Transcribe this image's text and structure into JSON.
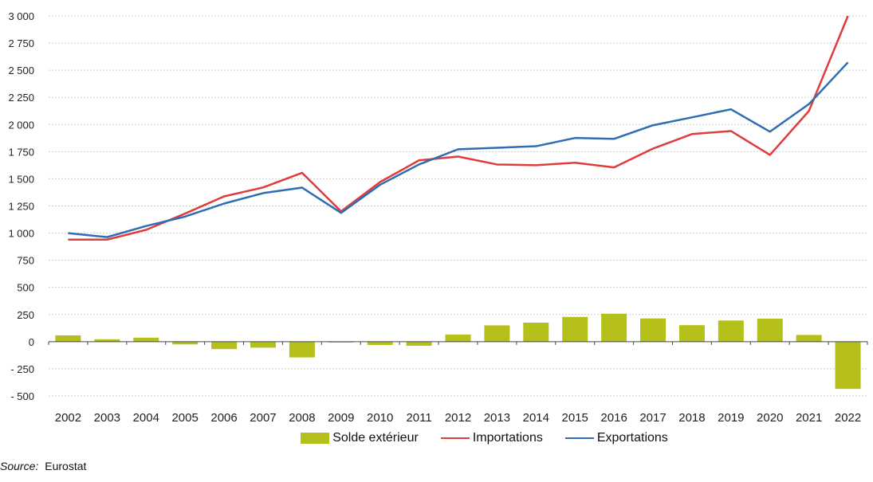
{
  "chart_data": {
    "type": "bar+line",
    "categories": [
      "2002",
      "2003",
      "2004",
      "2005",
      "2006",
      "2007",
      "2008",
      "2009",
      "2010",
      "2011",
      "2012",
      "2013",
      "2014",
      "2015",
      "2016",
      "2017",
      "2018",
      "2019",
      "2020",
      "2021",
      "2022"
    ],
    "series": [
      {
        "name": "Solde extérieur",
        "kind": "bar",
        "color": "#b5c01a",
        "values": [
          58,
          22,
          37,
          -25,
          -68,
          -55,
          -145,
          -5,
          -30,
          -38,
          66,
          150,
          175,
          228,
          258,
          214,
          152,
          195,
          212,
          62,
          -435
        ]
      },
      {
        "name": "Importations",
        "kind": "line",
        "color": "#e03c3c",
        "values": [
          940,
          940,
          1030,
          1180,
          1338,
          1420,
          1555,
          1200,
          1470,
          1670,
          1705,
          1632,
          1625,
          1648,
          1605,
          1778,
          1912,
          1940,
          1720,
          2125,
          3000
        ]
      },
      {
        "name": "Exportations",
        "kind": "line",
        "color": "#2e6db4",
        "values": [
          1000,
          963,
          1065,
          1152,
          1272,
          1368,
          1419,
          1186,
          1445,
          1632,
          1772,
          1786,
          1800,
          1876,
          1868,
          1993,
          2066,
          2140,
          1934,
          2188,
          2572
        ]
      }
    ],
    "yticks": [
      "3 000",
      "2 750",
      "2 500",
      "2 250",
      "2 000",
      "1 750",
      "1 500",
      "1 250",
      "1 000",
      "750",
      "500",
      "250",
      "0",
      "- 250",
      "- 500"
    ],
    "ytick_values": [
      3000,
      2750,
      2500,
      2250,
      2000,
      1750,
      1500,
      1250,
      1000,
      750,
      500,
      250,
      0,
      -250,
      -500
    ],
    "ylim": [
      -500,
      3000
    ],
    "grid": true,
    "legend_position": "bottom"
  },
  "source_label": "Source:",
  "source_value": "Eurostat"
}
